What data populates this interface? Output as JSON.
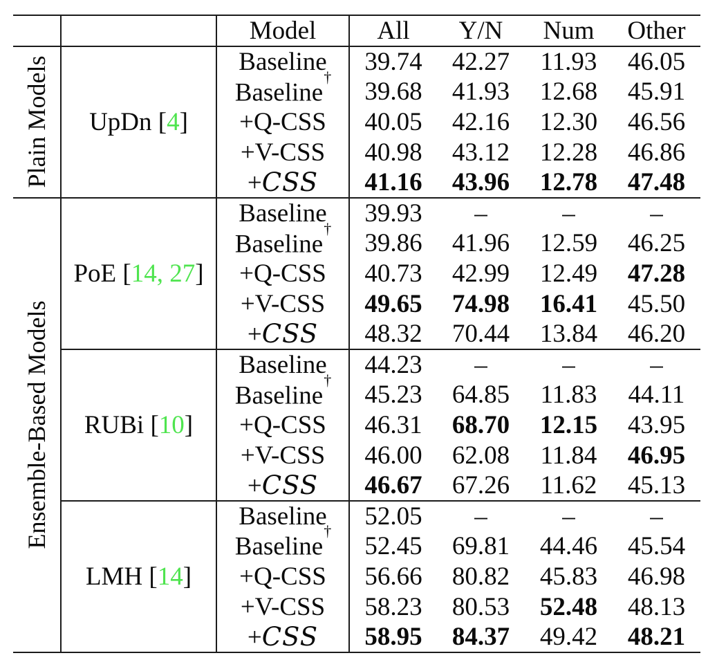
{
  "header": {
    "model_col": "Model",
    "metric_cols": [
      "All",
      "Y/N",
      "Num",
      "Other"
    ]
  },
  "side_sections": [
    {
      "label": "Plain Models",
      "row_count": 5
    },
    {
      "label": "Ensemble-Based Models",
      "row_count": 15
    }
  ],
  "symbols": {
    "dagger": "†",
    "open_bracket": "[",
    "close_bracket": "]",
    "citation_separator": ", "
  },
  "colors": {
    "citation_green": "#4fe44f",
    "text": "#0b0b0b",
    "background": "#ffffff"
  },
  "groups": [
    {
      "name": "UpDn",
      "citations": [
        "4"
      ],
      "rows": [
        {
          "model": "Baseline",
          "dagger": false,
          "script": false,
          "values": [
            {
              "v": "39.74",
              "b": false
            },
            {
              "v": "42.27",
              "b": false
            },
            {
              "v": "11.93",
              "b": false
            },
            {
              "v": "46.05",
              "b": false
            }
          ]
        },
        {
          "model": "Baseline",
          "dagger": true,
          "script": false,
          "values": [
            {
              "v": "39.68",
              "b": false
            },
            {
              "v": "41.93",
              "b": false
            },
            {
              "v": "12.68",
              "b": false
            },
            {
              "v": "45.91",
              "b": false
            }
          ]
        },
        {
          "model": "+Q-CSS",
          "dagger": false,
          "script": false,
          "values": [
            {
              "v": "40.05",
              "b": false
            },
            {
              "v": "42.16",
              "b": false
            },
            {
              "v": "12.30",
              "b": false
            },
            {
              "v": "46.56",
              "b": false
            }
          ]
        },
        {
          "model": "+V-CSS",
          "dagger": false,
          "script": false,
          "values": [
            {
              "v": "40.98",
              "b": false
            },
            {
              "v": "43.12",
              "b": false
            },
            {
              "v": "12.28",
              "b": false
            },
            {
              "v": "46.86",
              "b": false
            }
          ]
        },
        {
          "model": "+CSS",
          "dagger": false,
          "script": true,
          "values": [
            {
              "v": "41.16",
              "b": true
            },
            {
              "v": "43.96",
              "b": true
            },
            {
              "v": "12.78",
              "b": true
            },
            {
              "v": "47.48",
              "b": true
            }
          ]
        }
      ]
    },
    {
      "name": "PoE",
      "citations": [
        "14",
        "27"
      ],
      "rows": [
        {
          "model": "Baseline",
          "dagger": false,
          "script": false,
          "values": [
            {
              "v": "39.93",
              "b": false
            },
            {
              "v": "–",
              "b": false
            },
            {
              "v": "–",
              "b": false
            },
            {
              "v": "–",
              "b": false
            }
          ]
        },
        {
          "model": "Baseline",
          "dagger": true,
          "script": false,
          "values": [
            {
              "v": "39.86",
              "b": false
            },
            {
              "v": "41.96",
              "b": false
            },
            {
              "v": "12.59",
              "b": false
            },
            {
              "v": "46.25",
              "b": false
            }
          ]
        },
        {
          "model": "+Q-CSS",
          "dagger": false,
          "script": false,
          "values": [
            {
              "v": "40.73",
              "b": false
            },
            {
              "v": "42.99",
              "b": false
            },
            {
              "v": "12.49",
              "b": false
            },
            {
              "v": "47.28",
              "b": true
            }
          ]
        },
        {
          "model": "+V-CSS",
          "dagger": false,
          "script": false,
          "values": [
            {
              "v": "49.65",
              "b": true
            },
            {
              "v": "74.98",
              "b": true
            },
            {
              "v": "16.41",
              "b": true
            },
            {
              "v": "45.50",
              "b": false
            }
          ]
        },
        {
          "model": "+CSS",
          "dagger": false,
          "script": true,
          "values": [
            {
              "v": "48.32",
              "b": false
            },
            {
              "v": "70.44",
              "b": false
            },
            {
              "v": "13.84",
              "b": false
            },
            {
              "v": "46.20",
              "b": false
            }
          ]
        }
      ]
    },
    {
      "name": "RUBi",
      "citations": [
        "10"
      ],
      "rows": [
        {
          "model": "Baseline",
          "dagger": false,
          "script": false,
          "values": [
            {
              "v": "44.23",
              "b": false
            },
            {
              "v": "–",
              "b": false
            },
            {
              "v": "–",
              "b": false
            },
            {
              "v": "–",
              "b": false
            }
          ]
        },
        {
          "model": "Baseline",
          "dagger": true,
          "script": false,
          "values": [
            {
              "v": "45.23",
              "b": false
            },
            {
              "v": "64.85",
              "b": false
            },
            {
              "v": "11.83",
              "b": false
            },
            {
              "v": "44.11",
              "b": false
            }
          ]
        },
        {
          "model": "+Q-CSS",
          "dagger": false,
          "script": false,
          "values": [
            {
              "v": "46.31",
              "b": false
            },
            {
              "v": "68.70",
              "b": true
            },
            {
              "v": "12.15",
              "b": true
            },
            {
              "v": "43.95",
              "b": false
            }
          ]
        },
        {
          "model": "+V-CSS",
          "dagger": false,
          "script": false,
          "values": [
            {
              "v": "46.00",
              "b": false
            },
            {
              "v": "62.08",
              "b": false
            },
            {
              "v": "11.84",
              "b": false
            },
            {
              "v": "46.95",
              "b": true
            }
          ]
        },
        {
          "model": "+CSS",
          "dagger": false,
          "script": true,
          "values": [
            {
              "v": "46.67",
              "b": true
            },
            {
              "v": "67.26",
              "b": false
            },
            {
              "v": "11.62",
              "b": false
            },
            {
              "v": "45.13",
              "b": false
            }
          ]
        }
      ]
    },
    {
      "name": "LMH",
      "citations": [
        "14"
      ],
      "rows": [
        {
          "model": "Baseline",
          "dagger": false,
          "script": false,
          "values": [
            {
              "v": "52.05",
              "b": false
            },
            {
              "v": "–",
              "b": false
            },
            {
              "v": "–",
              "b": false
            },
            {
              "v": "–",
              "b": false
            }
          ]
        },
        {
          "model": "Baseline",
          "dagger": true,
          "script": false,
          "values": [
            {
              "v": "52.45",
              "b": false
            },
            {
              "v": "69.81",
              "b": false
            },
            {
              "v": "44.46",
              "b": false
            },
            {
              "v": "45.54",
              "b": false
            }
          ]
        },
        {
          "model": "+Q-CSS",
          "dagger": false,
          "script": false,
          "values": [
            {
              "v": "56.66",
              "b": false
            },
            {
              "v": "80.82",
              "b": false
            },
            {
              "v": "45.83",
              "b": false
            },
            {
              "v": "46.98",
              "b": false
            }
          ]
        },
        {
          "model": "+V-CSS",
          "dagger": false,
          "script": false,
          "values": [
            {
              "v": "58.23",
              "b": false
            },
            {
              "v": "80.53",
              "b": false
            },
            {
              "v": "52.48",
              "b": true
            },
            {
              "v": "48.13",
              "b": false
            }
          ]
        },
        {
          "model": "+CSS",
          "dagger": false,
          "script": true,
          "values": [
            {
              "v": "58.95",
              "b": true
            },
            {
              "v": "84.37",
              "b": true
            },
            {
              "v": "49.42",
              "b": false
            },
            {
              "v": "48.21",
              "b": true
            }
          ]
        }
      ]
    }
  ]
}
